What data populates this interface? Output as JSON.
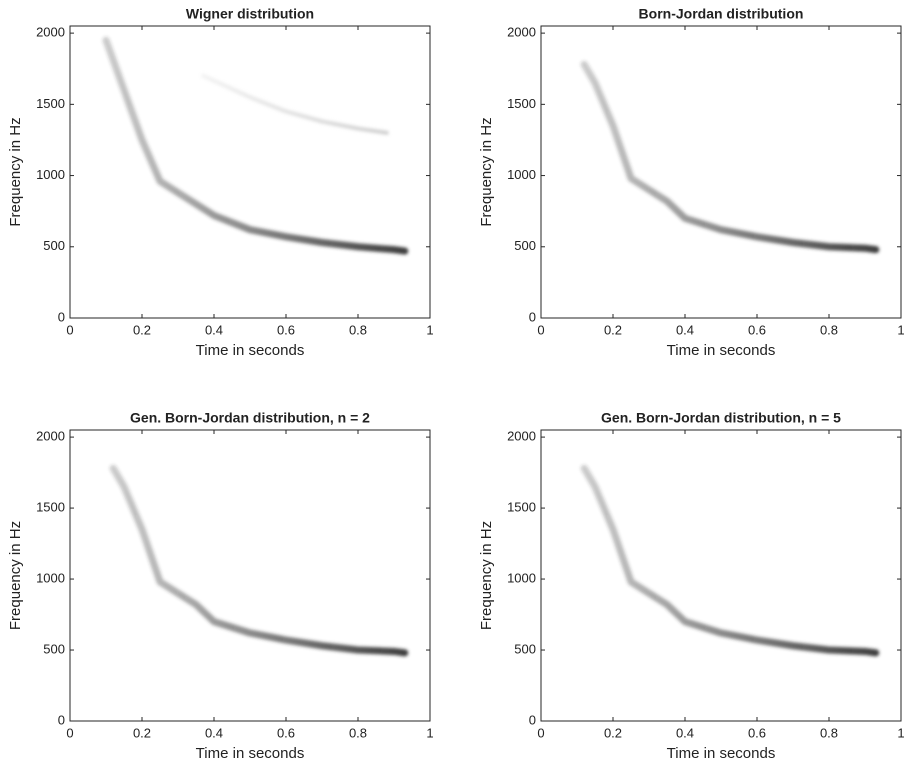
{
  "chart_data": [
    {
      "type": "line",
      "title": "Wigner distribution",
      "xlabel": "Time in seconds",
      "ylabel": "Frequency in Hz",
      "xlim": [
        0,
        1
      ],
      "ylim": [
        0,
        2050
      ],
      "xticks": [
        0,
        0.2,
        0.4,
        0.6,
        0.8,
        1
      ],
      "yticks": [
        0,
        500,
        1000,
        1500,
        2000
      ],
      "series": [
        {
          "color": "#333333",
          "x": [
            0.1,
            0.15,
            0.2,
            0.25,
            0.3,
            0.4,
            0.5,
            0.6,
            0.7,
            0.8,
            0.9,
            0.93
          ],
          "values": [
            1950,
            1600,
            1250,
            960,
            880,
            720,
            620,
            570,
            530,
            500,
            480,
            470
          ]
        },
        {
          "color": "#cccccc",
          "x": [
            0.37,
            0.5,
            0.6,
            0.7,
            0.8,
            0.88
          ],
          "values": [
            1700,
            1550,
            1450,
            1380,
            1330,
            1300
          ]
        }
      ]
    },
    {
      "type": "line",
      "title": "Born-Jordan distribution",
      "xlabel": "Time in seconds",
      "ylabel": "Frequency in Hz",
      "xlim": [
        0,
        1
      ],
      "ylim": [
        0,
        2050
      ],
      "xticks": [
        0,
        0.2,
        0.4,
        0.6,
        0.8,
        1
      ],
      "yticks": [
        0,
        500,
        1000,
        1500,
        2000
      ],
      "series": [
        {
          "color": "#333333",
          "x": [
            0.12,
            0.15,
            0.2,
            0.25,
            0.3,
            0.35,
            0.4,
            0.5,
            0.6,
            0.7,
            0.8,
            0.9,
            0.93
          ],
          "values": [
            1780,
            1650,
            1350,
            980,
            900,
            820,
            700,
            620,
            570,
            530,
            500,
            490,
            480
          ]
        }
      ]
    },
    {
      "type": "line",
      "title": "Gen. Born-Jordan distribution, n = 2",
      "xlabel": "Time in seconds",
      "ylabel": "Frequency in Hz",
      "xlim": [
        0,
        1
      ],
      "ylim": [
        0,
        2050
      ],
      "xticks": [
        0,
        0.2,
        0.4,
        0.6,
        0.8,
        1
      ],
      "yticks": [
        0,
        500,
        1000,
        1500,
        2000
      ],
      "series": [
        {
          "color": "#333333",
          "x": [
            0.12,
            0.15,
            0.2,
            0.25,
            0.3,
            0.35,
            0.4,
            0.5,
            0.6,
            0.7,
            0.8,
            0.9,
            0.93
          ],
          "values": [
            1780,
            1650,
            1350,
            980,
            900,
            820,
            700,
            620,
            570,
            530,
            500,
            490,
            480
          ]
        }
      ]
    },
    {
      "type": "line",
      "title": "Gen. Born-Jordan distribution, n = 5",
      "xlabel": "Time in seconds",
      "ylabel": "Frequency in Hz",
      "xlim": [
        0,
        1
      ],
      "ylim": [
        0,
        2050
      ],
      "xticks": [
        0,
        0.2,
        0.4,
        0.6,
        0.8,
        1
      ],
      "yticks": [
        0,
        500,
        1000,
        1500,
        2000
      ],
      "series": [
        {
          "color": "#333333",
          "x": [
            0.12,
            0.15,
            0.2,
            0.25,
            0.3,
            0.35,
            0.4,
            0.5,
            0.6,
            0.7,
            0.8,
            0.9,
            0.93
          ],
          "values": [
            1780,
            1650,
            1350,
            980,
            900,
            820,
            700,
            620,
            570,
            530,
            500,
            490,
            480
          ]
        }
      ]
    }
  ]
}
